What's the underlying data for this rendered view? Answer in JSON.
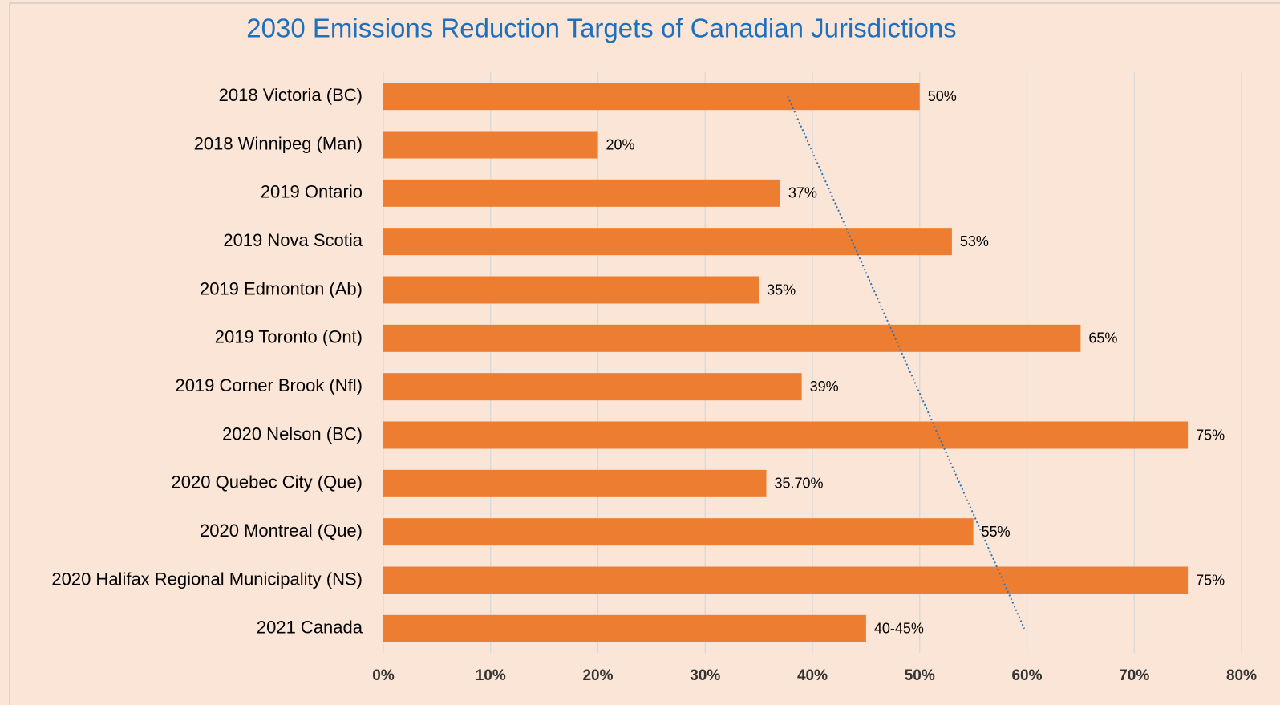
{
  "chart_data": {
    "type": "bar",
    "orientation": "horizontal",
    "title": "2030 Emissions Reduction Targets of Canadian Jurisdictions",
    "categories": [
      "2018 Victoria (BC)",
      "2018 Winnipeg (Man)",
      "2019 Ontario",
      "2019 Nova Scotia",
      "2019 Edmonton (Ab)",
      "2019 Toronto (Ont)",
      "2019 Corner Brook (Nfl)",
      "2020 Nelson (BC)",
      "2020 Quebec City (Que)",
      "2020 Montreal (Que)",
      "2020 Halifax Regional Municipality (NS)",
      "2021 Canada"
    ],
    "values": [
      50,
      20,
      37,
      53,
      35,
      65,
      39,
      75,
      35.7,
      55,
      75,
      45
    ],
    "value_labels": [
      "50%",
      "20%",
      "37%",
      "53%",
      "35%",
      "65%",
      "39%",
      "75%",
      "35.70%",
      "55%",
      "75%",
      "40-45%"
    ],
    "color": "#ed7d31",
    "xlim": [
      0,
      80
    ],
    "xticks": [
      {
        "value": 0,
        "label": "0%"
      },
      {
        "value": 10,
        "label": "10%"
      },
      {
        "value": 20,
        "label": "20%"
      },
      {
        "value": 30,
        "label": "30%"
      },
      {
        "value": 40,
        "label": "40%"
      },
      {
        "value": 50,
        "label": "50%"
      },
      {
        "value": 60,
        "label": "60%"
      },
      {
        "value": 70,
        "label": "70%"
      },
      {
        "value": 80,
        "label": "80%"
      }
    ],
    "grid": true,
    "trendline": "linear",
    "trendline_color": "#2e75b6"
  }
}
